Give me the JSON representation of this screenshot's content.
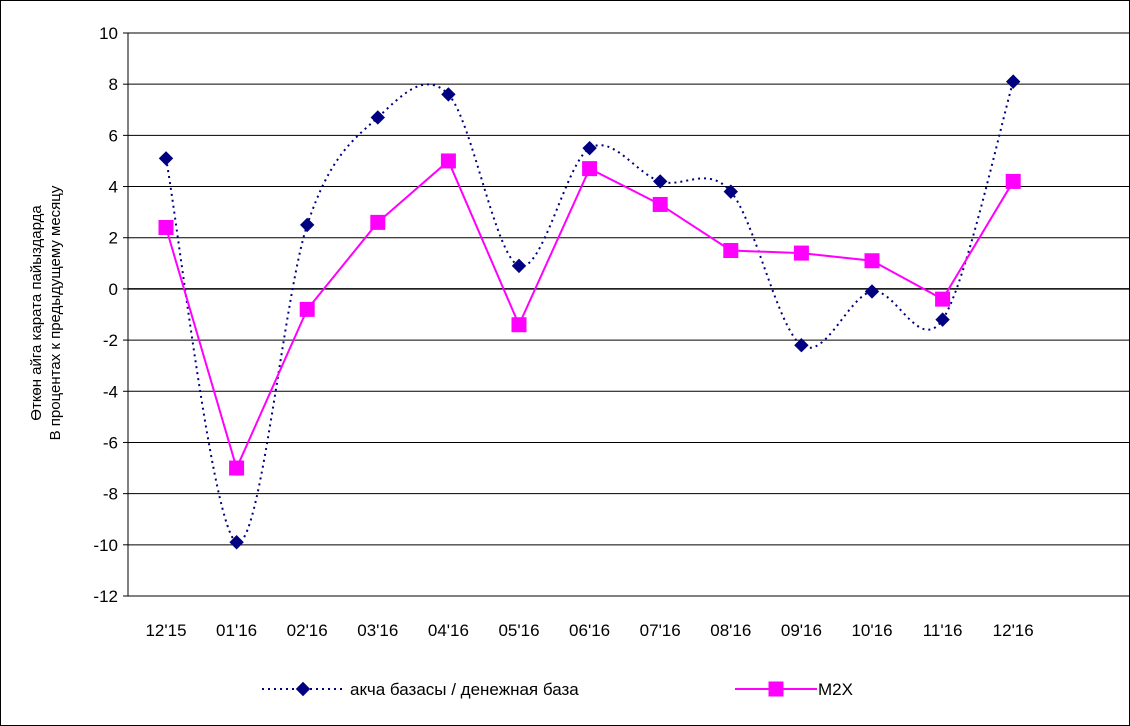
{
  "chart_data": {
    "type": "line",
    "categories": [
      "12'15",
      "01'16",
      "02'16",
      "03'16",
      "04'16",
      "05'16",
      "06'16",
      "07'16",
      "08'16",
      "09'16",
      "10'16",
      "11'16",
      "12'16"
    ],
    "series": [
      {
        "name": "акча базасы / денежная база",
        "color": "#000080",
        "line_style": "dotted",
        "marker": "diamond",
        "smooth": true,
        "values": [
          5.1,
          -9.9,
          2.5,
          6.7,
          7.6,
          0.9,
          5.5,
          4.2,
          3.8,
          -2.2,
          -0.1,
          -1.2,
          8.1
        ]
      },
      {
        "name": "М2Х",
        "color": "#FF00FF",
        "line_style": "solid",
        "marker": "square",
        "smooth": false,
        "values": [
          2.4,
          -7.0,
          -0.8,
          2.6,
          5.0,
          -1.4,
          4.7,
          3.3,
          1.5,
          1.4,
          1.1,
          -0.4,
          4.2
        ]
      }
    ],
    "ylabel": [
      "Өткөн айга карата пайыздарда",
      "В процентах к предыдущему месяцу"
    ],
    "ylim": [
      -12,
      10
    ],
    "yticks": [
      -12,
      -10,
      -8,
      -6,
      -4,
      -2,
      0,
      2,
      4,
      6,
      8,
      10
    ],
    "grid": true,
    "legend_position": "bottom"
  }
}
